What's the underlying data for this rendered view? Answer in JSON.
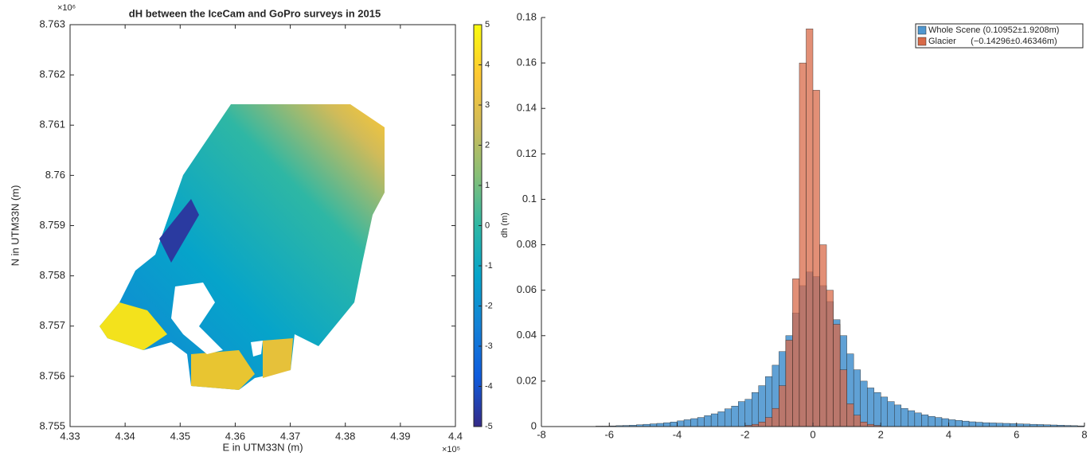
{
  "chart_data": [
    {
      "type": "map",
      "title": "dH between the IceCam and GoPro surveys in 2015",
      "xlabel": "E in UTM33N (m)",
      "ylabel": "N in UTM33N (m)",
      "x_multiplier": "×10⁵",
      "y_multiplier": "×10⁶",
      "xlim": [
        4.33,
        4.4
      ],
      "xticks": [
        4.33,
        4.34,
        4.35,
        4.36,
        4.37,
        4.38,
        4.39,
        4.4
      ],
      "ylim": [
        8.755,
        8.763
      ],
      "yticks": [
        8.755,
        8.756,
        8.757,
        8.758,
        8.759,
        8.76,
        8.761,
        8.762,
        8.763
      ],
      "colorbar": {
        "label": "dh (m)",
        "lim": [
          -5,
          5
        ],
        "ticks": [
          -5,
          -4,
          -3,
          -2,
          -1,
          0,
          1,
          2,
          3,
          4,
          5
        ],
        "colors": [
          "#352a87",
          "#0f5cdd",
          "#1481d6",
          "#06a4ca",
          "#2eb7a4",
          "#87bf77",
          "#d1bb59",
          "#fec832",
          "#f9fb0e"
        ]
      }
    },
    {
      "type": "histogram",
      "xlim": [
        -8,
        8
      ],
      "xticks": [
        -8,
        -6,
        -4,
        -2,
        0,
        2,
        4,
        6,
        8
      ],
      "ylim": [
        0,
        0.18
      ],
      "yticks": [
        0,
        0.02,
        0.04,
        0.06,
        0.08,
        0.1,
        0.12,
        0.14,
        0.16,
        0.18
      ],
      "legend": "upper right",
      "bins": [
        -8,
        -7.8,
        -7.6,
        -7.4,
        -7.2,
        -7,
        -6.8,
        -6.6,
        -6.4,
        -6.2,
        -6,
        -5.8,
        -5.6,
        -5.4,
        -5.2,
        -5,
        -4.8,
        -4.6,
        -4.4,
        -4.2,
        -4,
        -3.8,
        -3.6,
        -3.4,
        -3.2,
        -3,
        -2.8,
        -2.6,
        -2.4,
        -2.2,
        -2,
        -1.8,
        -1.6,
        -1.4,
        -1.2,
        -1,
        -0.8,
        -0.6,
        -0.4,
        -0.2,
        0,
        0.2,
        0.4,
        0.6,
        0.8,
        1,
        1.2,
        1.4,
        1.6,
        1.8,
        2,
        2.2,
        2.4,
        2.6,
        2.8,
        3,
        3.2,
        3.4,
        3.6,
        3.8,
        4,
        4.2,
        4.4,
        4.6,
        4.8,
        5,
        5.2,
        5.4,
        5.6,
        5.8,
        6,
        6.2,
        6.4,
        6.6,
        6.8,
        7,
        7.2,
        7.4,
        7.6,
        7.8,
        8
      ],
      "series": [
        {
          "name": "Whole Scene (0.10952±1.9208m)",
          "color": "#4f97d0",
          "values": [
            0,
            0,
            0,
            0,
            0,
            0.0001,
            0.0001,
            0.0001,
            0.0002,
            0.0002,
            0.0003,
            0.0004,
            0.0005,
            0.0006,
            0.0008,
            0.001,
            0.0012,
            0.0014,
            0.0017,
            0.002,
            0.0025,
            0.003,
            0.0035,
            0.004,
            0.0048,
            0.0056,
            0.0065,
            0.0078,
            0.009,
            0.011,
            0.012,
            0.015,
            0.018,
            0.022,
            0.027,
            0.033,
            0.04,
            0.05,
            0.062,
            0.068,
            0.066,
            0.062,
            0.055,
            0.047,
            0.04,
            0.032,
            0.025,
            0.02,
            0.017,
            0.015,
            0.013,
            0.011,
            0.0095,
            0.008,
            0.007,
            0.006,
            0.0052,
            0.0045,
            0.004,
            0.0035,
            0.003,
            0.0027,
            0.0024,
            0.0021,
            0.0019,
            0.0017,
            0.0016,
            0.0015,
            0.0014,
            0.0013,
            0.0012,
            0.0011,
            0.001,
            0.0009,
            0.0008,
            0.0007,
            0.0006,
            0.0005,
            0.0004,
            0.0003
          ]
        },
        {
          "name": "Glacier      (−0.14296±0.46346m)",
          "color": "#d86a48",
          "values": [
            0,
            0,
            0,
            0,
            0,
            0,
            0,
            0,
            0,
            0,
            0,
            0,
            0,
            0,
            0,
            0,
            0,
            0,
            0,
            0,
            0,
            0,
            0,
            0,
            0,
            0,
            0,
            0,
            0,
            0,
            0.0005,
            0.001,
            0.002,
            0.004,
            0.008,
            0.018,
            0.038,
            0.065,
            0.16,
            0.175,
            0.148,
            0.08,
            0.06,
            0.045,
            0.025,
            0.01,
            0.005,
            0.002,
            0.001,
            0.0005,
            0,
            0,
            0,
            0,
            0,
            0,
            0,
            0,
            0,
            0,
            0,
            0,
            0,
            0,
            0,
            0,
            0,
            0,
            0,
            0,
            0,
            0,
            0,
            0,
            0,
            0,
            0,
            0,
            0,
            0
          ]
        }
      ]
    }
  ]
}
